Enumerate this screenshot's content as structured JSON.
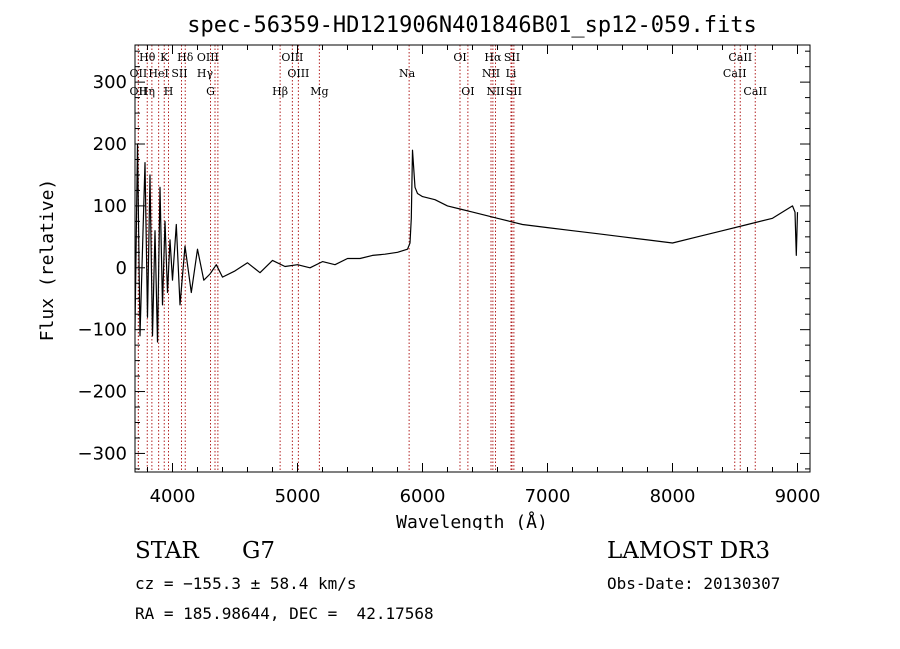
{
  "chart_data": {
    "type": "line",
    "title": "spec-56359-HD121906N401846B01_sp12-059.fits",
    "xlabel": "Wavelength (Å)",
    "ylabel": "Flux (relative)",
    "xlim": [
      3700,
      9100
    ],
    "ylim": [
      -330,
      360
    ],
    "x_ticks": [
      4000,
      5000,
      6000,
      7000,
      8000,
      9000
    ],
    "x_tick_labels": [
      "4000",
      "5000",
      "6000",
      "7000",
      "8000",
      "9000"
    ],
    "y_ticks": [
      -300,
      -200,
      -100,
      0,
      100,
      200,
      300
    ],
    "y_tick_labels": [
      "−300",
      "−200",
      "−100",
      "0",
      "100",
      "200",
      "300"
    ],
    "series": [
      {
        "name": "spectrum",
        "x": [
          3700,
          3720,
          3740,
          3760,
          3780,
          3800,
          3820,
          3840,
          3860,
          3880,
          3900,
          3920,
          3940,
          3960,
          3980,
          4000,
          4030,
          4060,
          4100,
          4150,
          4200,
          4250,
          4300,
          4350,
          4400,
          4500,
          4600,
          4700,
          4800,
          4900,
          5000,
          5100,
          5200,
          5300,
          5400,
          5500,
          5600,
          5700,
          5800,
          5880,
          5900,
          5910,
          5920,
          5940,
          5960,
          6000,
          6100,
          6200,
          6300,
          6400,
          6500,
          6600,
          6700,
          6800,
          7000,
          7200,
          7400,
          7600,
          7800,
          8000,
          8200,
          8400,
          8600,
          8800,
          8960,
          8980,
          8990,
          9000
        ],
        "y": [
          -100,
          200,
          -110,
          30,
          170,
          -80,
          150,
          -110,
          60,
          -120,
          130,
          -60,
          75,
          -40,
          45,
          -20,
          70,
          -60,
          35,
          -40,
          30,
          -20,
          -10,
          5,
          -15,
          -5,
          8,
          -8,
          12,
          2,
          5,
          0,
          10,
          5,
          15,
          15,
          20,
          22,
          25,
          30,
          40,
          80,
          190,
          130,
          120,
          115,
          110,
          100,
          95,
          90,
          85,
          80,
          75,
          70,
          65,
          60,
          55,
          50,
          45,
          40,
          50,
          60,
          70,
          80,
          100,
          90,
          20,
          90
        ]
      }
    ],
    "line_ids": [
      {
        "label": "Hθ",
        "x": 3798,
        "row": 0,
        "dx": 0
      },
      {
        "label": "K",
        "x": 3934,
        "row": 0,
        "dx": 0
      },
      {
        "label": "Hδ",
        "x": 4102,
        "row": 0,
        "dx": 0
      },
      {
        "label": "OIII",
        "x": 4363,
        "row": 0,
        "dx": -10
      },
      {
        "label": "OIII",
        "x": 4959,
        "row": 0,
        "dx": 0
      },
      {
        "label": "OI",
        "x": 6300,
        "row": 0,
        "dx": 0
      },
      {
        "label": "Hα",
        "x": 6563,
        "row": 0,
        "dx": 0
      },
      {
        "label": "SII",
        "x": 6716,
        "row": 0,
        "dx": 0
      },
      {
        "label": "CaII",
        "x": 8542,
        "row": 0,
        "dx": 0
      },
      {
        "label": "OII",
        "x": 3727,
        "row": 1,
        "dx": 0
      },
      {
        "label": "HeI",
        "x": 3889,
        "row": 1,
        "dx": 0
      },
      {
        "label": "SII",
        "x": 4072,
        "row": 1,
        "dx": -2
      },
      {
        "label": "Hγ",
        "x": 4340,
        "row": 1,
        "dx": -10
      },
      {
        "label": "OIII",
        "x": 5007,
        "row": 1,
        "dx": 0
      },
      {
        "label": "Na",
        "x": 5893,
        "row": 1,
        "dx": -2
      },
      {
        "label": "NII",
        "x": 6548,
        "row": 1,
        "dx": 0
      },
      {
        "label": "Li",
        "x": 6708,
        "row": 1,
        "dx": 0
      },
      {
        "label": "CaII",
        "x": 8498,
        "row": 1,
        "dx": 0
      },
      {
        "label": "OII",
        "x": 3727,
        "row": 2,
        "dx": 0
      },
      {
        "label": "Hη",
        "x": 3835,
        "row": 2,
        "dx": -5
      },
      {
        "label": "H",
        "x": 3968,
        "row": 2,
        "dx": 0
      },
      {
        "label": "G",
        "x": 4304,
        "row": 2,
        "dx": 0
      },
      {
        "label": "Hβ",
        "x": 4861,
        "row": 2,
        "dx": 0
      },
      {
        "label": "Mg",
        "x": 5175,
        "row": 2,
        "dx": 0
      },
      {
        "label": "OI",
        "x": 6363,
        "row": 2,
        "dx": 0
      },
      {
        "label": "NII",
        "x": 6584,
        "row": 2,
        "dx": 0
      },
      {
        "label": "SII",
        "x": 6731,
        "row": 2,
        "dx": 0
      },
      {
        "label": "CaII",
        "x": 8662,
        "row": 2,
        "dx": 0
      }
    ]
  },
  "info": {
    "star": "STAR",
    "subclass": "G7",
    "survey": "LAMOST DR3",
    "cz": "cz = −155.3 ± 58.4 km/s",
    "obs_date": "Obs-Date: 20130307",
    "coords": "RA = 185.98644, DEC =  42.17568"
  },
  "colors": {
    "axis": "#000000",
    "line_marker": "#b22222",
    "spectrum": "#000000"
  }
}
